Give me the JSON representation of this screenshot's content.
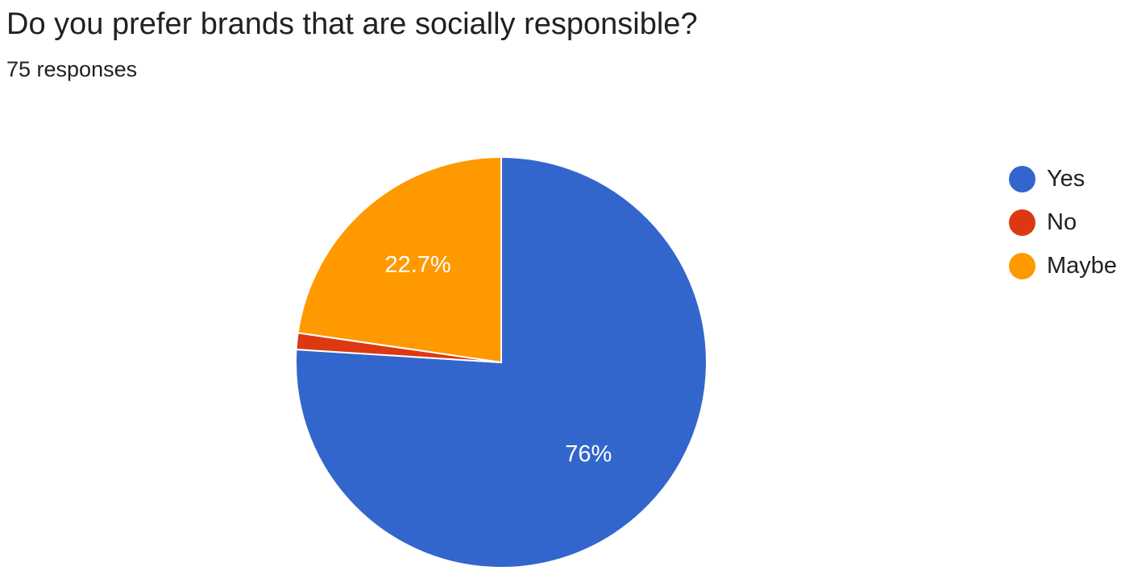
{
  "question": {
    "title": "Do you prefer brands that are socially responsible?",
    "responses_label": "75 responses"
  },
  "legend": [
    {
      "label": "Yes",
      "color": "#3366CC"
    },
    {
      "label": "No",
      "color": "#DC3912"
    },
    {
      "label": "Maybe",
      "color": "#FF9900"
    }
  ],
  "chart_data": {
    "type": "pie",
    "title": "Do you prefer brands that are socially responsible?",
    "total_responses": 75,
    "legend_position": "right",
    "slices": [
      {
        "label": "Yes",
        "value": 76,
        "display": "76%",
        "color": "#3366CC"
      },
      {
        "label": "No",
        "value": 1.3,
        "display": "",
        "color": "#DC3912"
      },
      {
        "label": "Maybe",
        "value": 22.7,
        "display": "22.7%",
        "color": "#FF9900"
      }
    ]
  }
}
